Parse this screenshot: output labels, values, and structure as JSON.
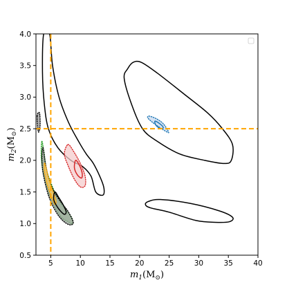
{
  "chart_data": {
    "type": "contour",
    "xlabel": {
      "main": "m",
      "sub": "1",
      "unit": "(M",
      "unit_sub": "⊙",
      "close": ")"
    },
    "ylabel": {
      "main": "m",
      "sub": "2",
      "unit": "(M",
      "unit_sub": "⊙",
      "close": ")"
    },
    "xlim": [
      2.5,
      40
    ],
    "ylim": [
      0.5,
      4.0
    ],
    "x_ticks": [
      5,
      10,
      15,
      20,
      25,
      30,
      35,
      40
    ],
    "y_ticks": [
      0.5,
      1.0,
      1.5,
      2.0,
      2.5,
      3.0,
      3.5,
      4.0
    ],
    "x_tick_labels": [
      "5",
      "10",
      "15",
      "20",
      "25",
      "30",
      "35",
      "40"
    ],
    "y_tick_labels": [
      "0.5",
      "1.0",
      "1.5",
      "2.0",
      "2.5",
      "3.0",
      "3.5",
      "4.0"
    ],
    "grid": false,
    "legend": "top-right (empty)",
    "reference_lines": [
      {
        "orientation": "vertical",
        "value": 5.0,
        "color": "#ffa500",
        "style": "dashed"
      },
      {
        "orientation": "horizontal",
        "value": 2.5,
        "color": "#ffa500",
        "style": "dashed"
      }
    ],
    "contours": [
      {
        "id": "black-band",
        "color": "#000000",
        "style": "solid",
        "fill": null,
        "points": [
          [
            3.8,
            4.0
          ],
          [
            3.6,
            3.4
          ],
          [
            3.9,
            2.9
          ],
          [
            4.6,
            2.5
          ],
          [
            6.2,
            2.2
          ],
          [
            8.4,
            2.0
          ],
          [
            10.4,
            1.9
          ],
          [
            11.8,
            1.75
          ],
          [
            12.6,
            1.5
          ],
          [
            13.8,
            1.45
          ],
          [
            14.0,
            1.55
          ],
          [
            13.5,
            1.7
          ],
          [
            12.2,
            1.95
          ],
          [
            11.0,
            2.1
          ],
          [
            9.7,
            2.3
          ],
          [
            8.0,
            2.6
          ],
          [
            6.4,
            3.0
          ],
          [
            5.3,
            3.5
          ],
          [
            4.8,
            4.0
          ]
        ]
      },
      {
        "id": "black-upper-blob",
        "color": "#000000",
        "style": "solid",
        "fill": null,
        "points": [
          [
            18.0,
            3.45
          ],
          [
            18.9,
            3.55
          ],
          [
            20.3,
            3.55
          ],
          [
            23.0,
            3.38
          ],
          [
            27.5,
            3.05
          ],
          [
            31.5,
            2.75
          ],
          [
            34.0,
            2.5
          ],
          [
            35.7,
            2.25
          ],
          [
            35.5,
            2.0
          ],
          [
            34.3,
            1.95
          ],
          [
            31.0,
            2.0
          ],
          [
            26.8,
            2.1
          ],
          [
            23.0,
            2.3
          ],
          [
            20.5,
            2.5
          ],
          [
            18.6,
            2.9
          ],
          [
            17.4,
            3.3
          ]
        ]
      },
      {
        "id": "black-lower-blob",
        "color": "#000000",
        "style": "solid",
        "fill": null,
        "points": [
          [
            21.5,
            1.35
          ],
          [
            23.5,
            1.38
          ],
          [
            28.5,
            1.32
          ],
          [
            33.5,
            1.2
          ],
          [
            35.7,
            1.1
          ],
          [
            35.2,
            1.03
          ],
          [
            32.8,
            1.02
          ],
          [
            29.5,
            1.05
          ],
          [
            25.0,
            1.18
          ],
          [
            21.8,
            1.25
          ],
          [
            21.0,
            1.3
          ]
        ]
      },
      {
        "id": "black-small-edge",
        "color": "#000000",
        "style": "dotted",
        "fill": "#999999",
        "points": [
          [
            2.7,
            2.7
          ],
          [
            3.1,
            2.75
          ],
          [
            3.2,
            2.55
          ],
          [
            2.9,
            2.45
          ]
        ]
      },
      {
        "id": "red-outer",
        "color": "#d62728",
        "style": "dotted",
        "fill": "#f4cccc",
        "points": [
          [
            7.9,
            2.25
          ],
          [
            8.8,
            2.15
          ],
          [
            10.0,
            1.95
          ],
          [
            10.8,
            1.75
          ],
          [
            10.8,
            1.6
          ],
          [
            10.0,
            1.58
          ],
          [
            9.0,
            1.7
          ],
          [
            8.0,
            1.9
          ],
          [
            7.3,
            2.1
          ]
        ]
      },
      {
        "id": "red-inner",
        "color": "#d62728",
        "style": "solid",
        "fill": null,
        "points": [
          [
            9.2,
            2.0
          ],
          [
            9.8,
            1.93
          ],
          [
            10.3,
            1.8
          ],
          [
            10.2,
            1.72
          ],
          [
            9.5,
            1.77
          ],
          [
            9.0,
            1.88
          ]
        ]
      },
      {
        "id": "blue-outer",
        "color": "#1f77b4",
        "style": "dotted",
        "fill": "#c6d8ef",
        "points": [
          [
            21.6,
            2.7
          ],
          [
            22.8,
            2.66
          ],
          [
            24.0,
            2.58
          ],
          [
            24.9,
            2.45
          ],
          [
            24.6,
            2.45
          ],
          [
            23.4,
            2.52
          ],
          [
            22.2,
            2.6
          ],
          [
            21.4,
            2.67
          ]
        ]
      },
      {
        "id": "blue-inner",
        "color": "#1f77b4",
        "style": "solid",
        "fill": null,
        "points": [
          [
            22.6,
            2.62
          ],
          [
            23.4,
            2.58
          ],
          [
            24.0,
            2.52
          ],
          [
            23.6,
            2.5
          ],
          [
            22.8,
            2.55
          ]
        ]
      },
      {
        "id": "green-outer",
        "color": "#2ca02c",
        "style": "dotted",
        "fill": "#a8d8a0",
        "points": [
          [
            3.5,
            2.3
          ],
          [
            3.9,
            2.1
          ],
          [
            4.3,
            1.85
          ],
          [
            5.2,
            1.6
          ],
          [
            6.3,
            1.38
          ],
          [
            7.5,
            1.22
          ],
          [
            8.5,
            1.1
          ],
          [
            8.7,
            1.0
          ],
          [
            7.9,
            1.03
          ],
          [
            6.8,
            1.1
          ],
          [
            5.8,
            1.25
          ],
          [
            4.6,
            1.5
          ],
          [
            3.8,
            1.78
          ],
          [
            3.4,
            2.05
          ]
        ]
      },
      {
        "id": "black-dotted-outer",
        "color": "#000000",
        "style": "dotted",
        "fill": "#9aa39a",
        "points": [
          [
            3.7,
            2.2
          ],
          [
            4.1,
            1.95
          ],
          [
            4.7,
            1.7
          ],
          [
            5.6,
            1.5
          ],
          [
            6.9,
            1.32
          ],
          [
            8.0,
            1.18
          ],
          [
            8.8,
            1.02
          ],
          [
            8.2,
            0.98
          ],
          [
            7.0,
            1.05
          ],
          [
            5.8,
            1.2
          ],
          [
            4.6,
            1.45
          ],
          [
            3.7,
            1.8
          ],
          [
            3.5,
            2.05
          ]
        ]
      },
      {
        "id": "orange-fill",
        "color": "#ffa500",
        "style": "dotted",
        "fill": "#f6c85f",
        "points": [
          [
            4.0,
            1.95
          ],
          [
            4.7,
            1.7
          ],
          [
            5.4,
            1.5
          ],
          [
            5.9,
            1.35
          ],
          [
            5.7,
            1.3
          ],
          [
            5.0,
            1.45
          ],
          [
            4.3,
            1.65
          ],
          [
            3.9,
            1.85
          ]
        ]
      },
      {
        "id": "black-inner-solid",
        "color": "#000000",
        "style": "solid",
        "fill": null,
        "points": [
          [
            5.7,
            1.5
          ],
          [
            6.3,
            1.42
          ],
          [
            7.2,
            1.28
          ],
          [
            7.6,
            1.18
          ],
          [
            7.2,
            1.15
          ],
          [
            6.2,
            1.25
          ],
          [
            5.5,
            1.38
          ]
        ]
      }
    ]
  }
}
